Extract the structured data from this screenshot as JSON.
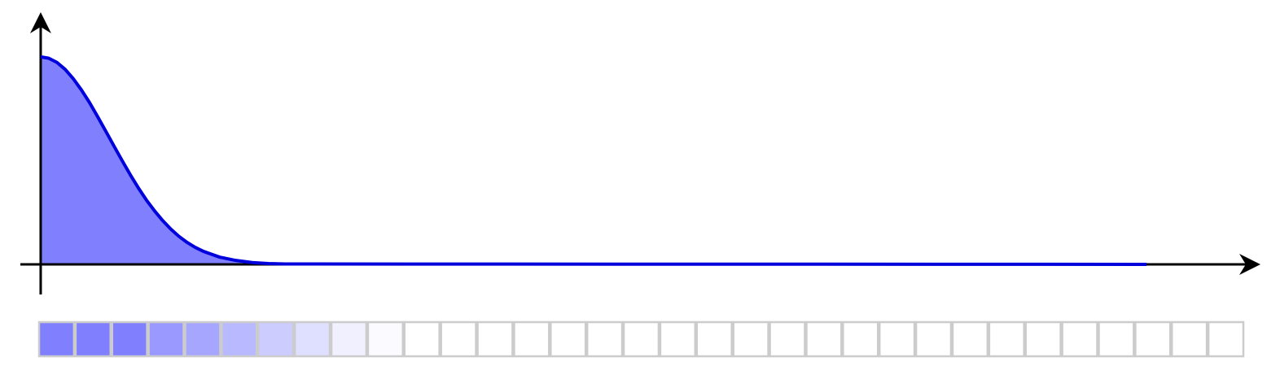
{
  "chart_data": [
    {
      "type": "area",
      "x": [
        0,
        0.1,
        0.2,
        0.3,
        0.4,
        0.5,
        0.6,
        0.7,
        0.8,
        0.9,
        1.0,
        1.1,
        1.2,
        1.3,
        1.4,
        1.5,
        1.6,
        1.7,
        1.8,
        1.9,
        2.0,
        2.2,
        2.4,
        2.6,
        2.8,
        3.0,
        13.6
      ],
      "values": [
        1,
        0.993,
        0.973,
        0.94,
        0.895,
        0.841,
        0.78,
        0.712,
        0.642,
        0.571,
        0.501,
        0.433,
        0.369,
        0.31,
        0.258,
        0.211,
        0.17,
        0.135,
        0.106,
        0.082,
        0.063,
        0.035,
        0.019,
        0.009,
        0.004,
        0.002,
        0
      ],
      "color": "#8080ff",
      "line_color": "#0000dd",
      "xlim": [
        -0.25,
        15
      ],
      "ylim": [
        -0.145,
        1.215
      ]
    },
    {
      "type": "heatstrip",
      "color": "#8080ff",
      "values": [
        1,
        1,
        1,
        0.8,
        0.7,
        0.55,
        0.4,
        0.25,
        0.12,
        0.04,
        0,
        0,
        0,
        0,
        0,
        0,
        0,
        0,
        0,
        0,
        0,
        0,
        0,
        0,
        0,
        0,
        0,
        0,
        0,
        0,
        0,
        0,
        0
      ]
    }
  ]
}
